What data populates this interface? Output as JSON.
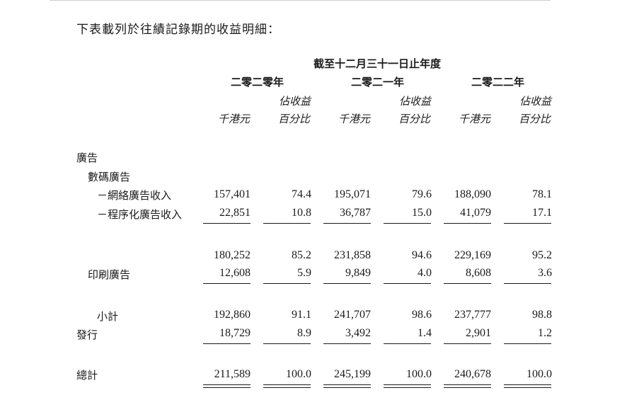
{
  "intro": "下表載列於往績記錄期的收益明細：",
  "header": {
    "period": "截至十二月三十一日止年度",
    "years": [
      "二零二零年",
      "二零二一年",
      "二零二二年"
    ],
    "pct_line1": "佔收益",
    "pct_line2": "百分比",
    "unit": "千港元"
  },
  "rows": {
    "advertising": "廣告",
    "digital": "數碼廣告",
    "online": {
      "label": "－網絡廣告收入",
      "values": [
        "157,401",
        "74.4",
        "195,071",
        "79.6",
        "188,090",
        "78.1"
      ]
    },
    "programmatic": {
      "label": "－程序化廣告收入",
      "values": [
        "22,851",
        "10.8",
        "36,787",
        "15.0",
        "41,079",
        "17.1"
      ]
    },
    "digital_total": {
      "values": [
        "180,252",
        "85.2",
        "231,858",
        "94.6",
        "229,169",
        "95.2"
      ]
    },
    "print": {
      "label": "印刷廣告",
      "values": [
        "12,608",
        "5.9",
        "9,849",
        "4.0",
        "8,608",
        "3.6"
      ]
    },
    "subtotal": {
      "label": "小計",
      "values": [
        "192,860",
        "91.1",
        "241,707",
        "98.6",
        "237,777",
        "98.8"
      ]
    },
    "distribution": {
      "label": "發行",
      "values": [
        "18,729",
        "8.9",
        "3,492",
        "1.4",
        "2,901",
        "1.2"
      ]
    },
    "total": {
      "label": "總計",
      "values": [
        "211,589",
        "100.0",
        "245,199",
        "100.0",
        "240,678",
        "100.0"
      ]
    }
  }
}
